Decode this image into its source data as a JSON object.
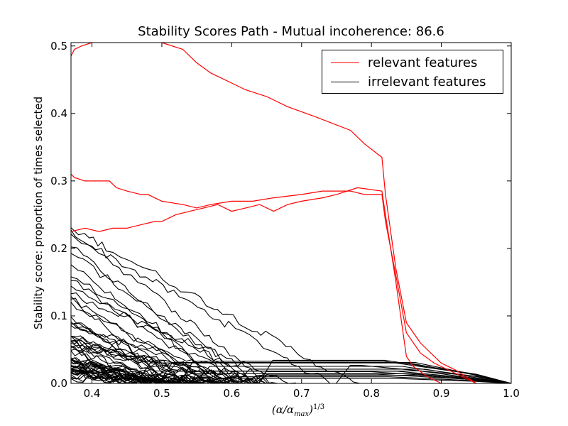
{
  "chart_data": {
    "type": "line",
    "title": "Stability Scores Path - Mutual incoherence: 86.6",
    "xlabel_base": "(α/α",
    "xlabel_sub": "max",
    "xlabel_close": ")",
    "xlabel_sup": "1/3",
    "ylabel": "Stability score: proportion of times selected",
    "xlim": [
      0.37,
      1.0
    ],
    "ylim": [
      0.0,
      0.505
    ],
    "xticks": [
      "0.4",
      "0.5",
      "0.6",
      "0.7",
      "0.8",
      "0.9",
      "1.0"
    ],
    "yticks": [
      "0.0",
      "0.1",
      "0.2",
      "0.3",
      "0.4",
      "0.5"
    ],
    "grid": false,
    "legend_position": "top-right",
    "legend": [
      {
        "label": "relevant features",
        "color": "#ff0000"
      },
      {
        "label": "irrelevant features",
        "color": "#000000"
      }
    ],
    "relevant_series": [
      {
        "color": "#ff0000",
        "points": [
          [
            0.37,
            0.485
          ],
          [
            0.375,
            0.495
          ],
          [
            0.385,
            0.5
          ],
          [
            0.4,
            0.505
          ],
          [
            0.43,
            0.51
          ],
          [
            0.47,
            0.51
          ],
          [
            0.5,
            0.505
          ],
          [
            0.53,
            0.495
          ],
          [
            0.55,
            0.475
          ],
          [
            0.57,
            0.46
          ],
          [
            0.6,
            0.445
          ],
          [
            0.62,
            0.435
          ],
          [
            0.65,
            0.425
          ],
          [
            0.68,
            0.41
          ],
          [
            0.72,
            0.395
          ],
          [
            0.77,
            0.375
          ],
          [
            0.79,
            0.355
          ],
          [
            0.815,
            0.335
          ],
          [
            0.82,
            0.28
          ],
          [
            0.835,
            0.17
          ],
          [
            0.85,
            0.09
          ],
          [
            0.87,
            0.06
          ],
          [
            0.88,
            0.05
          ],
          [
            0.9,
            0.03
          ],
          [
            0.92,
            0.02
          ],
          [
            0.95,
            0.0
          ]
        ]
      },
      {
        "color": "#ff0000",
        "points": [
          [
            0.37,
            0.31
          ],
          [
            0.375,
            0.305
          ],
          [
            0.39,
            0.3
          ],
          [
            0.41,
            0.3
          ],
          [
            0.425,
            0.3
          ],
          [
            0.435,
            0.29
          ],
          [
            0.45,
            0.285
          ],
          [
            0.47,
            0.28
          ],
          [
            0.48,
            0.28
          ],
          [
            0.5,
            0.27
          ],
          [
            0.53,
            0.265
          ],
          [
            0.55,
            0.26
          ],
          [
            0.57,
            0.265
          ],
          [
            0.6,
            0.27
          ],
          [
            0.63,
            0.27
          ],
          [
            0.66,
            0.275
          ],
          [
            0.7,
            0.28
          ],
          [
            0.73,
            0.285
          ],
          [
            0.77,
            0.285
          ],
          [
            0.79,
            0.28
          ],
          [
            0.815,
            0.28
          ],
          [
            0.82,
            0.24
          ],
          [
            0.835,
            0.16
          ],
          [
            0.85,
            0.075
          ],
          [
            0.87,
            0.045
          ],
          [
            0.89,
            0.03
          ],
          [
            0.91,
            0.02
          ],
          [
            0.93,
            0.01
          ],
          [
            0.95,
            0.0
          ]
        ]
      },
      {
        "color": "#ff0000",
        "points": [
          [
            0.37,
            0.225
          ],
          [
            0.39,
            0.23
          ],
          [
            0.41,
            0.225
          ],
          [
            0.43,
            0.23
          ],
          [
            0.45,
            0.23
          ],
          [
            0.47,
            0.235
          ],
          [
            0.49,
            0.24
          ],
          [
            0.5,
            0.24
          ],
          [
            0.52,
            0.25
          ],
          [
            0.54,
            0.255
          ],
          [
            0.56,
            0.26
          ],
          [
            0.58,
            0.265
          ],
          [
            0.6,
            0.255
          ],
          [
            0.62,
            0.26
          ],
          [
            0.64,
            0.265
          ],
          [
            0.66,
            0.255
          ],
          [
            0.68,
            0.265
          ],
          [
            0.7,
            0.27
          ],
          [
            0.73,
            0.275
          ],
          [
            0.75,
            0.28
          ],
          [
            0.78,
            0.29
          ],
          [
            0.815,
            0.285
          ],
          [
            0.82,
            0.25
          ],
          [
            0.835,
            0.15
          ],
          [
            0.85,
            0.04
          ],
          [
            0.86,
            0.025
          ],
          [
            0.88,
            0.01
          ],
          [
            0.9,
            0.0
          ]
        ]
      }
    ],
    "irrelevant_series_count": 60
  }
}
